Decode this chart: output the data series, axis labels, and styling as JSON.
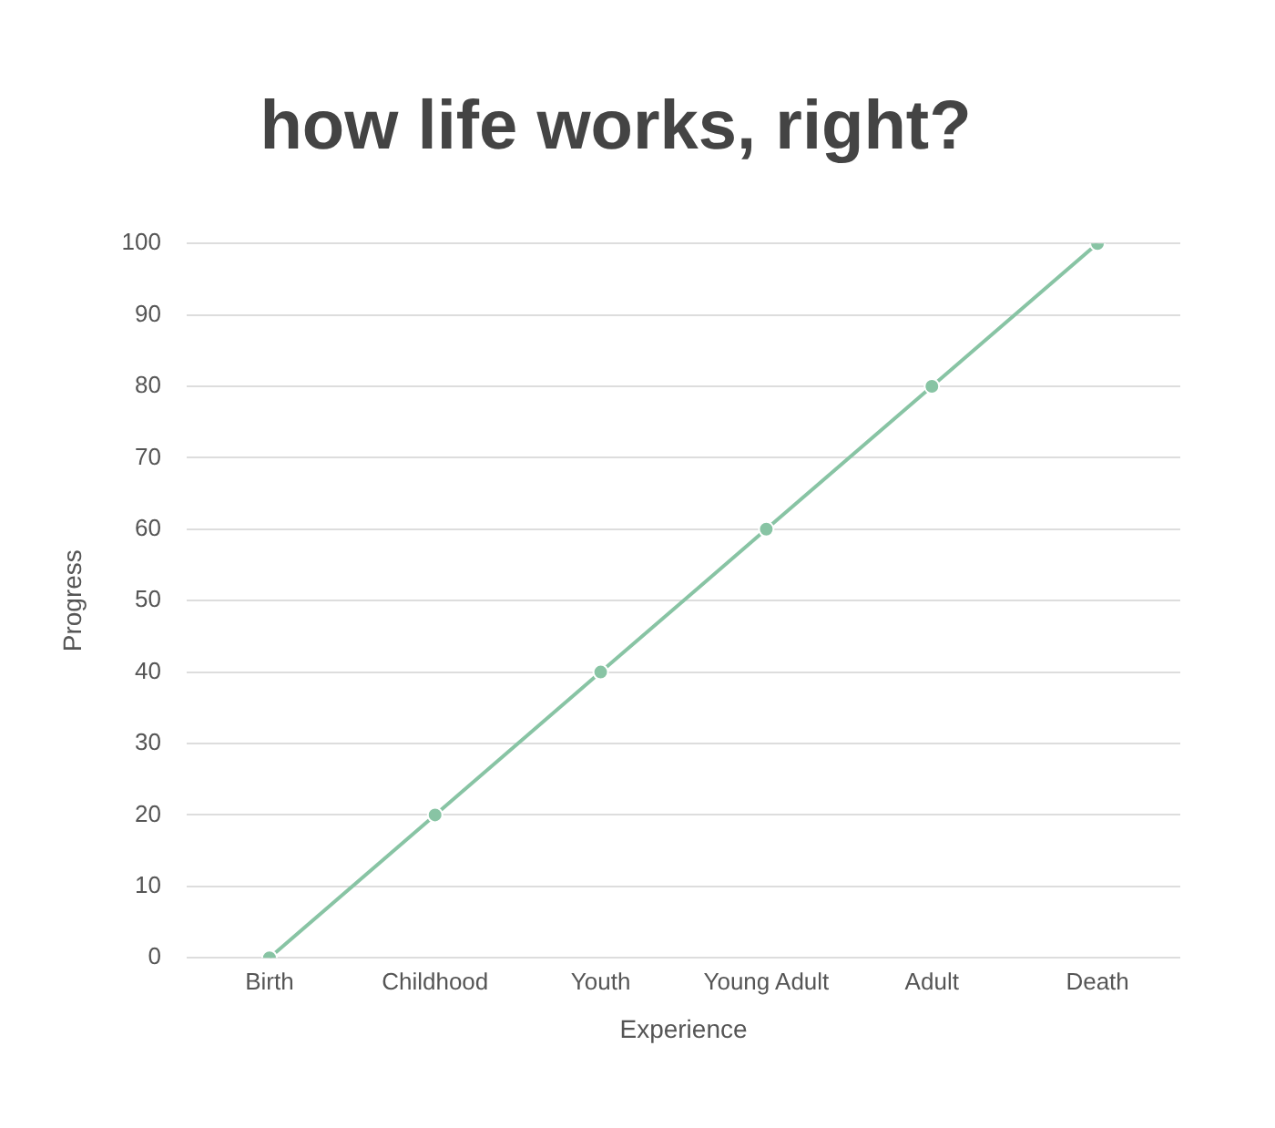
{
  "chart_data": {
    "type": "line",
    "title": "how life works, right?",
    "xlabel": "Experience",
    "ylabel": "Progress",
    "categories": [
      "Birth",
      "Childhood",
      "Youth",
      "Young Adult",
      "Adult",
      "Death"
    ],
    "series": [
      {
        "color": "#88c4a4",
        "values": [
          0,
          20,
          40,
          60,
          80,
          100
        ]
      }
    ],
    "ylim": [
      0,
      100
    ],
    "yticks": [
      0,
      10,
      20,
      30,
      40,
      50,
      60,
      70,
      80,
      90,
      100
    ],
    "grid": "y",
    "legend": false,
    "marker": "circle",
    "line_style": "solid"
  }
}
